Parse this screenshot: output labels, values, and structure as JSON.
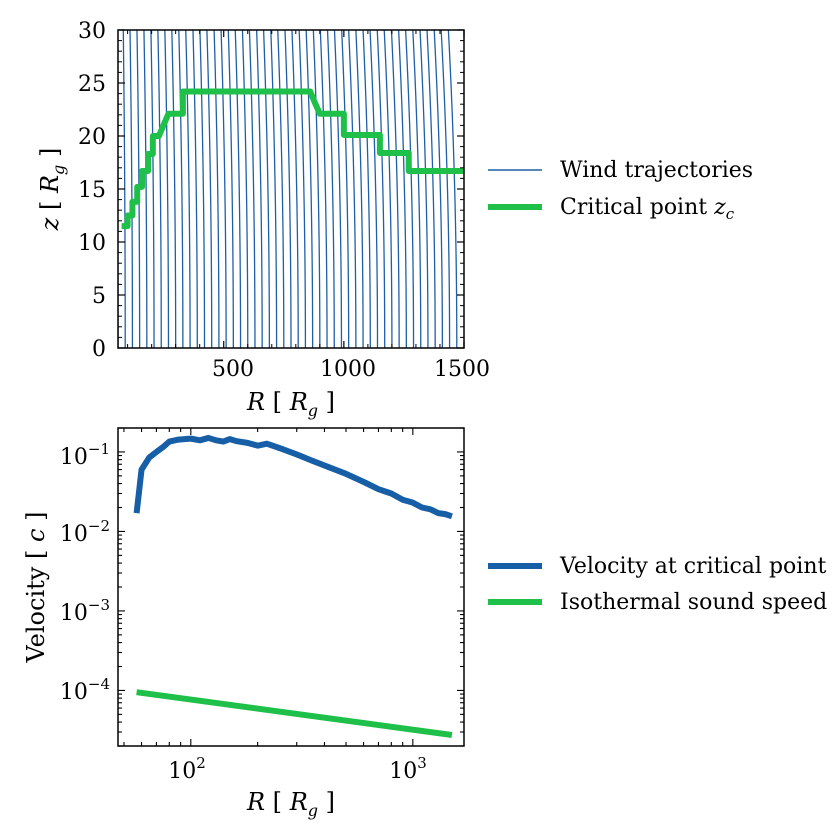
{
  "colors": {
    "wind": "#1f5fa8",
    "critical": "#1ec04a",
    "velocity": "#165ea6",
    "sound": "#1ec04a"
  },
  "chart_data": [
    {
      "type": "line",
      "title": "",
      "xlabel": "R [ R_g ]",
      "xlabel_parts": {
        "var": "R",
        "open": "[",
        "sym": "R",
        "sub": "g",
        "close": "]"
      },
      "ylabel": "z [ R_g ]",
      "ylabel_parts": {
        "var": "z",
        "open": "[",
        "sym": "R",
        "sub": "g",
        "close": "]"
      },
      "xlim": [
        60,
        1500
      ],
      "ylim": [
        0,
        30
      ],
      "xticks": [
        500,
        1000,
        1500
      ],
      "xtick_labels": [
        "500",
        "1000",
        "1500"
      ],
      "yticks": [
        0,
        5,
        10,
        15,
        20,
        25,
        30
      ],
      "ytick_labels": [
        "0",
        "5",
        "10",
        "15",
        "20",
        "25",
        "30"
      ],
      "wind_trajectories": {
        "name": "Wind trajectories",
        "base_R": [
          60,
          90,
          120,
          150,
          180,
          210,
          240,
          270,
          300,
          330,
          360,
          390,
          420,
          450,
          480,
          510,
          540,
          570,
          600,
          630,
          660,
          690,
          720,
          750,
          780,
          810,
          840,
          870,
          900,
          930,
          960,
          990,
          1020,
          1050,
          1080,
          1110,
          1140,
          1170,
          1200,
          1230,
          1260,
          1290,
          1320,
          1350,
          1380,
          1410,
          1440,
          1470
        ],
        "drift_at_top": [
          -6,
          -8,
          -10,
          -11,
          -12,
          -13,
          -14,
          -15,
          -16,
          -17,
          -18,
          -18,
          -19,
          -20,
          -20,
          -21,
          -21,
          -22,
          -22,
          -23,
          -23,
          -24,
          -24,
          -25,
          -25,
          -26,
          -26,
          -27,
          -27,
          -28,
          -28,
          -29,
          -29,
          -30,
          -30,
          -30,
          -31,
          -31,
          -32,
          -32,
          -32,
          -33,
          -33,
          -33,
          -34,
          -34,
          -35,
          -35
        ]
      },
      "critical_point": {
        "name": "Critical point",
        "name_sym": "z",
        "name_sub": "c",
        "x": [
          75,
          100,
          100,
          120,
          120,
          140,
          140,
          160,
          160,
          185,
          185,
          205,
          205,
          230,
          230,
          270,
          270,
          330,
          330,
          350,
          350,
          860,
          880,
          900,
          900,
          1000,
          1000,
          1070,
          1080,
          1150,
          1150,
          1200,
          1200,
          1270,
          1270,
          1340,
          1340,
          1500
        ],
        "y": [
          11.5,
          11.5,
          12.5,
          12.5,
          13.8,
          13.8,
          15.2,
          15.2,
          16.7,
          16.7,
          18.3,
          18.3,
          20.0,
          20.0,
          20.0,
          22.1,
          22.1,
          22.1,
          24.2,
          24.2,
          24.2,
          24.2,
          23.1,
          22.1,
          22.1,
          22.1,
          20.1,
          20.1,
          20.1,
          20.1,
          18.4,
          18.4,
          18.4,
          18.4,
          16.7,
          16.7,
          16.7,
          16.7
        ]
      },
      "legend_position": "right"
    },
    {
      "type": "line",
      "title": "",
      "xscale": "log",
      "yscale": "log",
      "xlabel": "R [ R_g ]",
      "xlabel_parts": {
        "var": "R",
        "open": "[",
        "sym": "R",
        "sub": "g",
        "close": "]"
      },
      "ylabel": "Velocity [ c ]",
      "ylabel_parts": {
        "var": "Velocity",
        "open": "[",
        "sym": "c",
        "close": "]"
      },
      "xlim": [
        47,
        1700
      ],
      "ylim": [
        2e-05,
        0.2
      ],
      "xticks": [
        100,
        1000
      ],
      "xtick_labels": [
        {
          "base": "10",
          "exp": "2"
        },
        {
          "base": "10",
          "exp": "3"
        }
      ],
      "yticks": [
        0.0001,
        0.001,
        0.01,
        0.1
      ],
      "ytick_labels": [
        {
          "base": "10",
          "exp": "−4"
        },
        {
          "base": "10",
          "exp": "−3"
        },
        {
          "base": "10",
          "exp": "−2"
        },
        {
          "base": "10",
          "exp": "−1"
        }
      ],
      "series": [
        {
          "name": "Velocity at critical point",
          "x": [
            57,
            60,
            65,
            70,
            75,
            80,
            88,
            100,
            110,
            120,
            130,
            140,
            150,
            160,
            180,
            200,
            220,
            260,
            300,
            350,
            420,
            500,
            600,
            700,
            800,
            900,
            1000,
            1100,
            1200,
            1300,
            1400,
            1500
          ],
          "y": [
            0.017,
            0.06,
            0.085,
            0.1,
            0.115,
            0.135,
            0.143,
            0.147,
            0.14,
            0.15,
            0.14,
            0.135,
            0.145,
            0.137,
            0.13,
            0.12,
            0.127,
            0.108,
            0.093,
            0.078,
            0.064,
            0.053,
            0.042,
            0.034,
            0.03,
            0.025,
            0.023,
            0.02,
            0.019,
            0.017,
            0.0165,
            0.0155
          ]
        },
        {
          "name": "Isothermal sound speed",
          "x": [
            57,
            1500
          ],
          "y": [
            9.5e-05,
            2.75e-05
          ]
        }
      ],
      "legend_position": "right"
    }
  ]
}
